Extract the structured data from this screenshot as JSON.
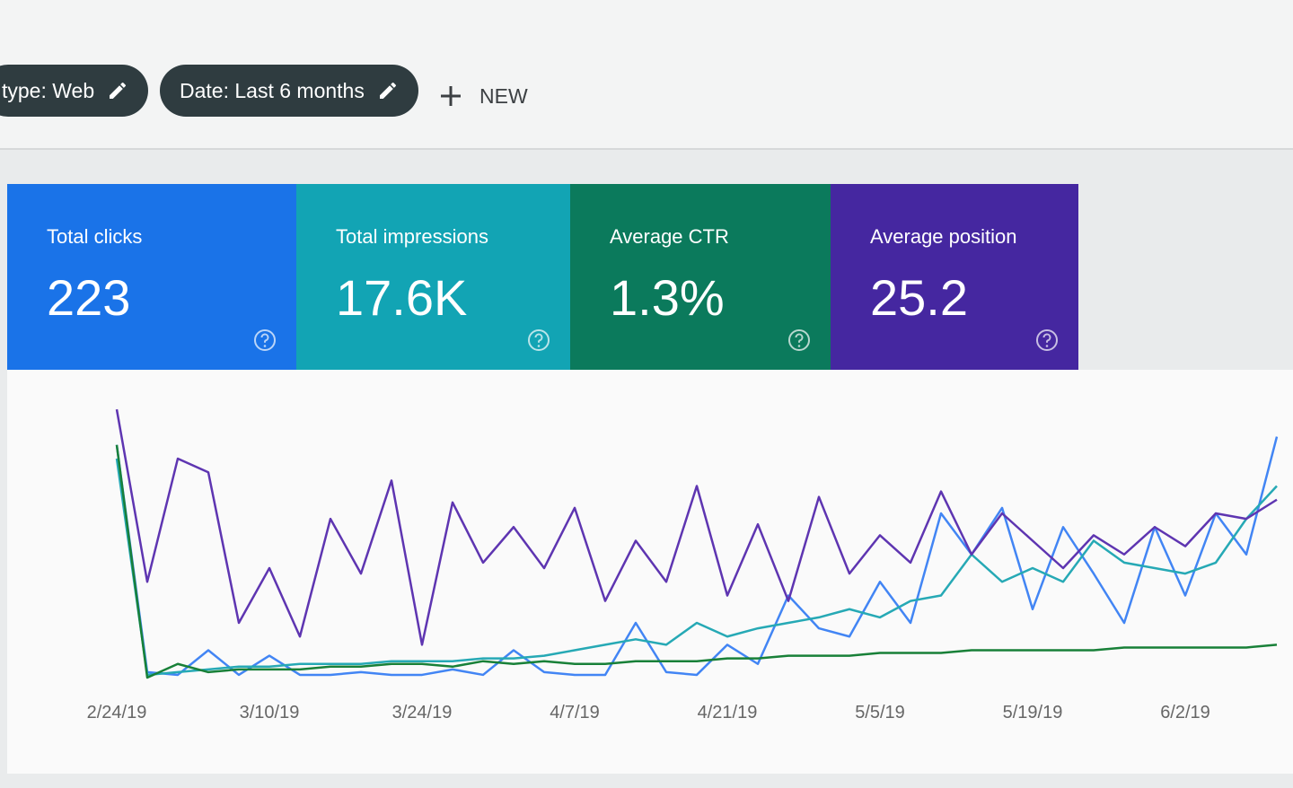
{
  "filters": [
    "type: Web",
    "Date: Last 6 months"
  ],
  "new_button": "NEW",
  "metrics": [
    {
      "label": "Total clicks",
      "value": "223",
      "color": "#1a73e8"
    },
    {
      "label": "Total impressions",
      "value": "17.6K",
      "color": "#12a4b4"
    },
    {
      "label": "Average CTR",
      "value": "1.3%",
      "color": "#0b7a5c"
    },
    {
      "label": "Average position",
      "value": "25.2",
      "color": "#4527a0"
    }
  ],
  "chart_data": {
    "type": "line",
    "categories": [
      "2/24/19",
      null,
      null,
      null,
      null,
      "3/10/19",
      null,
      null,
      null,
      null,
      "3/24/19",
      null,
      null,
      null,
      null,
      "4/7/19",
      null,
      null,
      null,
      null,
      "4/21/19",
      null,
      null,
      null,
      null,
      "5/5/19",
      null,
      null,
      null,
      null,
      "5/19/19",
      null,
      null,
      null,
      null,
      "6/2/19",
      null,
      null,
      null
    ],
    "ylim": [
      0,
      100
    ],
    "series": [
      {
        "color": "#4285f4",
        "values": [
          85,
          2,
          1,
          10,
          1,
          8,
          1,
          1,
          2,
          1,
          1,
          3,
          1,
          10,
          2,
          1,
          1,
          20,
          2,
          1,
          12,
          5,
          30,
          18,
          15,
          35,
          20,
          60,
          45,
          62,
          25,
          55,
          38,
          20,
          55,
          30,
          60,
          45,
          88
        ]
      },
      {
        "color": "#26a9b5",
        "values": [
          80,
          1,
          2,
          3,
          4,
          4,
          5,
          5,
          5,
          6,
          6,
          6,
          7,
          7,
          8,
          10,
          12,
          14,
          12,
          20,
          15,
          18,
          20,
          22,
          25,
          22,
          28,
          30,
          45,
          35,
          40,
          35,
          50,
          42,
          40,
          38,
          42,
          58,
          70
        ]
      },
      {
        "color": "#188038",
        "values": [
          85,
          0,
          5,
          2,
          3,
          3,
          3,
          4,
          4,
          5,
          5,
          4,
          6,
          5,
          6,
          5,
          5,
          6,
          6,
          6,
          7,
          7,
          8,
          8,
          8,
          9,
          9,
          9,
          10,
          10,
          10,
          10,
          10,
          11,
          11,
          11,
          11,
          11,
          12
        ]
      },
      {
        "color": "#5e35b1",
        "values": [
          98,
          35,
          80,
          75,
          20,
          40,
          15,
          58,
          38,
          72,
          12,
          64,
          42,
          55,
          40,
          62,
          28,
          50,
          35,
          70,
          30,
          56,
          28,
          66,
          38,
          52,
          42,
          68,
          45,
          60,
          50,
          40,
          52,
          45,
          55,
          48,
          60,
          58,
          65
        ]
      }
    ]
  }
}
